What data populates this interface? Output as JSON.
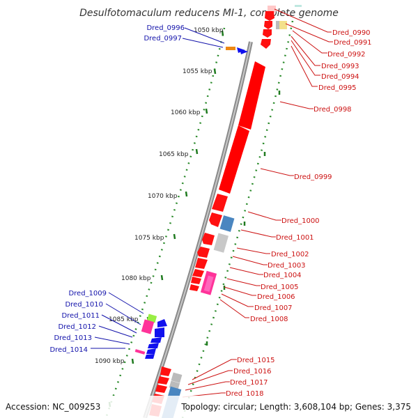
{
  "title": "Desulfotomaculum reducens MI-1, complete genome",
  "footer": {
    "accession": "Accession: NC_009253",
    "topology": "Topology: circular; Length: 3,608,104 bp; Genes: 3,375"
  },
  "scale_labels": [
    "1050 kbp",
    "1055 kbp",
    "1060 kbp",
    "1065 kbp",
    "1070 kbp",
    "1075 kbp",
    "1080 kbp",
    "1085 kbp",
    "1090 kbp"
  ],
  "right_genes": [
    "Dred_0990",
    "Dred_0991",
    "Dred_0992",
    "Dred_0993",
    "Dred_0994",
    "Dred_0995",
    "Dred_0998",
    "Dred_0999",
    "Dred_1000",
    "Dred_1001",
    "Dred_1002",
    "Dred_1003",
    "Dred_1004",
    "Dred_1005",
    "Dred_1006",
    "Dred_1007",
    "Dred_1008",
    "Dred_1015",
    "Dred_1016",
    "Dred_1017",
    "Dred_1018"
  ],
  "left_genes": [
    "Dred_0996",
    "Dred_0997",
    "Dred_1009",
    "Dred_1010",
    "Dred_1011",
    "Dred_1012",
    "Dred_1013",
    "Dred_1014"
  ],
  "colors": {
    "forward": "#ff0000",
    "reverse": "#1010ee",
    "label_red": "#cc1111",
    "label_blue": "#1111aa",
    "tick": "#228822"
  }
}
